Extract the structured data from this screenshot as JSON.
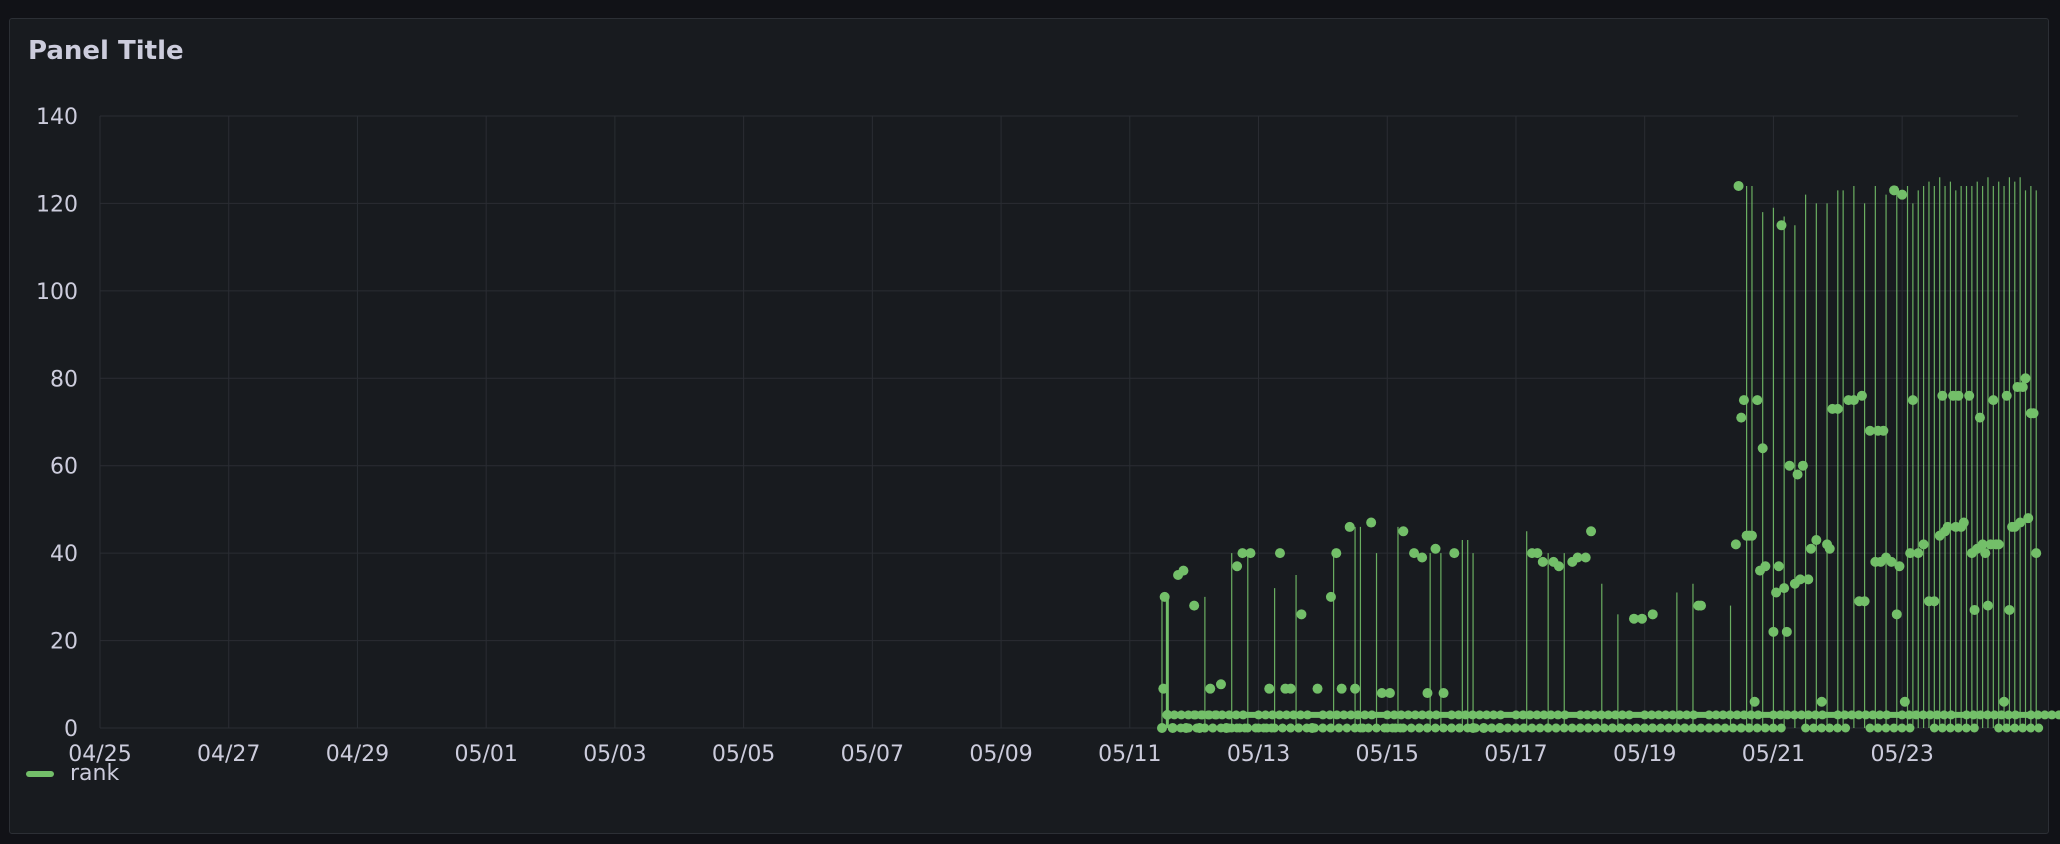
{
  "panel": {
    "title": "Panel Title"
  },
  "colors": {
    "series": "#73bf69",
    "grid": "#2a2d33",
    "text": "#ccccdc",
    "panel_bg": "#181b1f"
  },
  "chart_data": {
    "type": "scatter",
    "title": "Panel Title",
    "xlabel": "",
    "ylabel": "",
    "x_ticks": [
      "04/25",
      "04/27",
      "04/29",
      "05/01",
      "05/03",
      "05/05",
      "05/07",
      "05/09",
      "05/11",
      "05/13",
      "05/15",
      "05/17",
      "05/19",
      "05/21",
      "05/23"
    ],
    "y_ticks": [
      0,
      20,
      40,
      60,
      80,
      100,
      120,
      140
    ],
    "ylim": [
      0,
      140
    ],
    "xlim_days": [
      0,
      29.8
    ],
    "grid": true,
    "legend_position": "bottom-left",
    "series": [
      {
        "name": "rank",
        "style": "points with thin vertical lines",
        "points": [
          [
            "05/11 12:00",
            0
          ],
          [
            "05/11 12:30",
            9
          ],
          [
            "05/11 13:00",
            30
          ],
          [
            "05/11 14:00",
            3
          ],
          [
            "05/11 16:00",
            0
          ],
          [
            "05/11 18:00",
            35
          ],
          [
            "05/11 20:00",
            36
          ],
          [
            "05/11 21:00",
            0
          ],
          [
            "05/12 00:00",
            28
          ],
          [
            "05/12 02:00",
            0
          ],
          [
            "05/12 06:00",
            9
          ],
          [
            "05/12 10:00",
            10
          ],
          [
            "05/12 12:00",
            0
          ],
          [
            "05/12 16:00",
            37
          ],
          [
            "05/12 18:00",
            40
          ],
          [
            "05/12 21:00",
            40
          ],
          [
            "05/13 04:00",
            9
          ],
          [
            "05/13 08:00",
            40
          ],
          [
            "05/13 10:00",
            9
          ],
          [
            "05/13 12:00",
            9
          ],
          [
            "05/13 16:00",
            26
          ],
          [
            "05/13 20:00",
            0
          ],
          [
            "05/13 22:00",
            9
          ],
          [
            "05/14 03:00",
            30
          ],
          [
            "05/14 05:00",
            40
          ],
          [
            "05/14 07:00",
            9
          ],
          [
            "05/14 10:00",
            46
          ],
          [
            "05/14 12:00",
            9
          ],
          [
            "05/14 18:00",
            47
          ],
          [
            "05/14 22:00",
            8
          ],
          [
            "05/15 01:00",
            8
          ],
          [
            "05/15 06:00",
            45
          ],
          [
            "05/15 10:00",
            40
          ],
          [
            "05/15 13:00",
            39
          ],
          [
            "05/15 15:00",
            8
          ],
          [
            "05/15 18:00",
            41
          ],
          [
            "05/15 21:00",
            8
          ],
          [
            "05/16 01:00",
            40
          ],
          [
            "05/16 08:00",
            0
          ],
          [
            "05/16 12:00",
            0
          ],
          [
            "05/16 18:00",
            0
          ],
          [
            "05/17 06:00",
            40
          ],
          [
            "05/17 08:00",
            40
          ],
          [
            "05/17 10:00",
            38
          ],
          [
            "05/17 14:00",
            38
          ],
          [
            "05/17 16:00",
            37
          ],
          [
            "05/17 21:00",
            38
          ],
          [
            "05/17 23:00",
            39
          ],
          [
            "05/18 02:00",
            39
          ],
          [
            "05/18 04:00",
            45
          ],
          [
            "05/18 20:00",
            25
          ],
          [
            "05/18 23:00",
            25
          ],
          [
            "05/19 03:00",
            26
          ],
          [
            "05/19 20:00",
            28
          ],
          [
            "05/19 21:00",
            28
          ],
          [
            "05/20 10:00",
            42
          ],
          [
            "05/20 11:00",
            124
          ],
          [
            "05/20 12:00",
            71
          ],
          [
            "05/20 13:00",
            75
          ],
          [
            "05/20 14:00",
            44
          ],
          [
            "05/20 15:00",
            44
          ],
          [
            "05/20 16:00",
            44
          ],
          [
            "05/20 17:00",
            6
          ],
          [
            "05/20 18:00",
            75
          ],
          [
            "05/20 19:00",
            36
          ],
          [
            "05/20 20:00",
            64
          ],
          [
            "05/20 21:00",
            37
          ],
          [
            "05/21 00:00",
            22
          ],
          [
            "05/21 01:00",
            31
          ],
          [
            "05/21 02:00",
            37
          ],
          [
            "05/21 03:00",
            115
          ],
          [
            "05/21 04:00",
            32
          ],
          [
            "05/21 05:00",
            22
          ],
          [
            "05/21 06:00",
            60
          ],
          [
            "05/21 08:00",
            33
          ],
          [
            "05/21 09:00",
            58
          ],
          [
            "05/21 10:00",
            34
          ],
          [
            "05/21 11:00",
            60
          ],
          [
            "05/21 13:00",
            34
          ],
          [
            "05/21 14:00",
            41
          ],
          [
            "05/21 16:00",
            43
          ],
          [
            "05/21 18:00",
            6
          ],
          [
            "05/21 20:00",
            42
          ],
          [
            "05/21 21:00",
            41
          ],
          [
            "05/21 22:00",
            73
          ],
          [
            "05/22 00:00",
            73
          ],
          [
            "05/22 04:00",
            75
          ],
          [
            "05/22 06:00",
            75
          ],
          [
            "05/22 08:00",
            29
          ],
          [
            "05/22 09:00",
            76
          ],
          [
            "05/22 10:00",
            29
          ],
          [
            "05/22 12:00",
            68
          ],
          [
            "05/22 14:00",
            38
          ],
          [
            "05/22 15:00",
            68
          ],
          [
            "05/22 16:00",
            38
          ],
          [
            "05/22 17:00",
            68
          ],
          [
            "05/22 18:00",
            39
          ],
          [
            "05/22 20:00",
            38
          ],
          [
            "05/22 21:00",
            123
          ],
          [
            "05/22 22:00",
            26
          ],
          [
            "05/22 23:00",
            37
          ],
          [
            "05/23 00:00",
            122
          ],
          [
            "05/23 01:00",
            6
          ],
          [
            "05/23 03:00",
            40
          ],
          [
            "05/23 04:00",
            75
          ],
          [
            "05/23 06:00",
            40
          ],
          [
            "05/23 08:00",
            42
          ],
          [
            "05/23 10:00",
            29
          ],
          [
            "05/23 12:00",
            29
          ],
          [
            "05/23 14:00",
            44
          ],
          [
            "05/23 15:00",
            76
          ],
          [
            "05/23 16:00",
            45
          ],
          [
            "05/23 17:00",
            46
          ],
          [
            "05/23 19:00",
            76
          ],
          [
            "05/23 20:00",
            46
          ],
          [
            "05/23 21:00",
            76
          ],
          [
            "05/23 22:00",
            46
          ],
          [
            "05/23 23:00",
            47
          ],
          [
            "05/24 01:00",
            76
          ],
          [
            "05/24 02:00",
            40
          ],
          [
            "05/24 03:00",
            27
          ],
          [
            "05/24 04:00",
            41
          ],
          [
            "05/24 05:00",
            71
          ],
          [
            "05/24 06:00",
            42
          ],
          [
            "05/24 07:00",
            40
          ],
          [
            "05/24 08:00",
            28
          ],
          [
            "05/24 09:00",
            42
          ],
          [
            "05/24 10:00",
            75
          ],
          [
            "05/24 11:00",
            42
          ],
          [
            "05/24 12:00",
            42
          ],
          [
            "05/24 14:00",
            6
          ],
          [
            "05/24 15:00",
            76
          ],
          [
            "05/24 16:00",
            27
          ],
          [
            "05/24 17:00",
            46
          ],
          [
            "05/24 18:00",
            46
          ],
          [
            "05/24 19:00",
            78
          ],
          [
            "05/24 20:00",
            47
          ],
          [
            "05/24 21:00",
            78
          ],
          [
            "05/24 22:00",
            80
          ],
          [
            "05/24 23:00",
            48
          ],
          [
            "05/25 00:00",
            72
          ],
          [
            "05/25 01:00",
            72
          ],
          [
            "05/25 02:00",
            40
          ]
        ],
        "baseline_points": [
          [
            "05/11 14:00",
            3
          ],
          [
            "05/12 00:00",
            3
          ],
          [
            "05/13 00:00",
            3
          ],
          [
            "05/14 00:00",
            3
          ],
          [
            "05/15 00:00",
            3
          ],
          [
            "05/16 00:00",
            3
          ],
          [
            "05/17 00:00",
            3
          ],
          [
            "05/18 00:00",
            3
          ],
          [
            "05/19 00:00",
            3
          ],
          [
            "05/20 00:00",
            3
          ],
          [
            "05/21 00:00",
            3
          ],
          [
            "05/22 00:00",
            3
          ],
          [
            "05/23 00:00",
            3
          ],
          [
            "05/24 00:00",
            3
          ],
          [
            "05/25 00:00",
            3
          ]
        ],
        "zero_points": [
          [
            "05/11 16:00",
            0
          ],
          [
            "05/12 04:00",
            0
          ],
          [
            "05/12 14:00",
            0
          ],
          [
            "05/13 00:00",
            0
          ],
          [
            "05/13 12:00",
            0
          ],
          [
            "05/14 00:00",
            0
          ],
          [
            "05/14 14:00",
            0
          ],
          [
            "05/15 00:00",
            0
          ],
          [
            "05/15 12:00",
            0
          ],
          [
            "05/16 00:00",
            0
          ],
          [
            "05/16 12:00",
            0
          ],
          [
            "05/17 00:00",
            0
          ],
          [
            "05/17 12:00",
            0
          ],
          [
            "05/18 00:00",
            0
          ],
          [
            "05/18 12:00",
            0
          ],
          [
            "05/19 00:00",
            0
          ],
          [
            "05/19 12:00",
            0
          ],
          [
            "05/20 00:00",
            0
          ],
          [
            "05/20 12:00",
            0
          ],
          [
            "05/21 12:00",
            0
          ],
          [
            "05/22 12:00",
            0
          ],
          [
            "05/23 12:00",
            0
          ],
          [
            "05/24 12:00",
            0
          ]
        ],
        "spikes": [
          [
            "05/11 12:00",
            30
          ],
          [
            "05/12 04:00",
            30
          ],
          [
            "05/12 14:00",
            40
          ],
          [
            "05/12 20:00",
            40
          ],
          [
            "05/13 06:00",
            32
          ],
          [
            "05/13 14:00",
            35
          ],
          [
            "05/14 04:00",
            40
          ],
          [
            "05/14 12:00",
            46
          ],
          [
            "05/14 14:00",
            46
          ],
          [
            "05/14 20:00",
            40
          ],
          [
            "05/15 04:00",
            46
          ],
          [
            "05/15 16:00",
            40
          ],
          [
            "05/15 20:00",
            40
          ],
          [
            "05/16 04:00",
            43
          ],
          [
            "05/16 06:00",
            43
          ],
          [
            "05/16 08:00",
            40
          ],
          [
            "05/17 04:00",
            45
          ],
          [
            "05/17 12:00",
            40
          ],
          [
            "05/17 18:00",
            40
          ],
          [
            "05/18 08:00",
            33
          ],
          [
            "05/18 14:00",
            26
          ],
          [
            "05/19 12:00",
            31
          ],
          [
            "05/19 18:00",
            33
          ],
          [
            "05/20 08:00",
            28
          ],
          [
            "05/20 14:00",
            124
          ],
          [
            "05/20 16:00",
            124
          ],
          [
            "05/20 20:00",
            118
          ],
          [
            "05/21 00:00",
            119
          ],
          [
            "05/21 04:00",
            117
          ],
          [
            "05/21 08:00",
            115
          ],
          [
            "05/21 12:00",
            122
          ],
          [
            "05/21 16:00",
            120
          ],
          [
            "05/21 20:00",
            120
          ],
          [
            "05/22 00:00",
            123
          ],
          [
            "05/22 02:00",
            123
          ],
          [
            "05/22 06:00",
            124
          ],
          [
            "05/22 10:00",
            120
          ],
          [
            "05/22 14:00",
            124
          ],
          [
            "05/22 18:00",
            122
          ],
          [
            "05/22 22:00",
            124
          ],
          [
            "05/23 02:00",
            124
          ],
          [
            "05/23 04:00",
            120
          ],
          [
            "05/23 06:00",
            123
          ],
          [
            "05/23 08:00",
            124
          ],
          [
            "05/23 10:00",
            125
          ],
          [
            "05/23 12:00",
            124
          ],
          [
            "05/23 14:00",
            126
          ],
          [
            "05/23 16:00",
            124
          ],
          [
            "05/23 18:00",
            125
          ],
          [
            "05/23 20:00",
            123
          ],
          [
            "05/23 22:00",
            124
          ],
          [
            "05/24 00:00",
            124
          ],
          [
            "05/24 02:00",
            124
          ],
          [
            "05/24 04:00",
            125
          ],
          [
            "05/24 06:00",
            124
          ],
          [
            "05/24 08:00",
            126
          ],
          [
            "05/24 10:00",
            124
          ],
          [
            "05/24 12:00",
            125
          ],
          [
            "05/24 14:00",
            124
          ],
          [
            "05/24 16:00",
            126
          ],
          [
            "05/24 18:00",
            125
          ],
          [
            "05/24 20:00",
            126
          ],
          [
            "05/24 22:00",
            123
          ],
          [
            "05/25 00:00",
            124
          ],
          [
            "05/25 02:00",
            123
          ]
        ]
      }
    ]
  },
  "legend": {
    "items": [
      {
        "label": "rank"
      }
    ]
  }
}
